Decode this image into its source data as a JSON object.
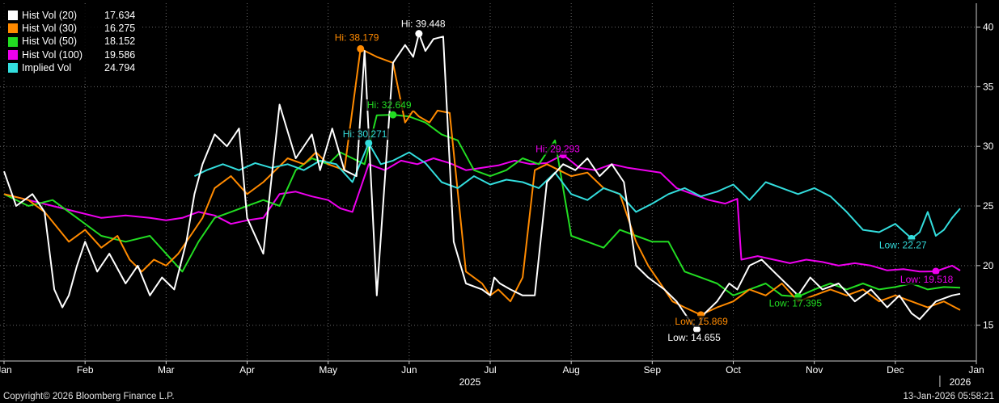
{
  "chart_data": {
    "type": "line",
    "title": "",
    "xlabel": "",
    "ylabel": "",
    "ylim": [
      12,
      42
    ],
    "y_ticks": [
      15,
      20,
      25,
      30,
      35,
      40
    ],
    "x_tick_labels": [
      "Jan",
      "Feb",
      "Mar",
      "Apr",
      "May",
      "Jun",
      "Jul",
      "Aug",
      "Sep",
      "Oct",
      "Nov",
      "Dec",
      "Jan"
    ],
    "year_labels": [
      "2025",
      "2026"
    ],
    "grid": true,
    "legend_position": "top-left",
    "series": [
      {
        "name": "Hist Vol (20)",
        "last": "17.634",
        "color": "#ffffff",
        "x": [
          0,
          0.15,
          0.35,
          0.5,
          0.62,
          0.72,
          0.8,
          0.9,
          1.0,
          1.15,
          1.3,
          1.5,
          1.65,
          1.8,
          1.95,
          2.1,
          2.25,
          2.35,
          2.45,
          2.6,
          2.75,
          2.9,
          3.0,
          3.2,
          3.4,
          3.6,
          3.8,
          3.9,
          4.05,
          4.2,
          4.35,
          4.45,
          4.6,
          4.8,
          4.95,
          5.05,
          5.12,
          5.2,
          5.3,
          5.42,
          5.55,
          5.7,
          5.9,
          6.0,
          6.05,
          6.12,
          6.25,
          6.4,
          6.55,
          6.7,
          6.9,
          7.05,
          7.2,
          7.35,
          7.5,
          7.65,
          7.8,
          7.95,
          8.05,
          8.15,
          8.3,
          8.45,
          8.55,
          8.65,
          8.8,
          8.95,
          9.05,
          9.2,
          9.35,
          9.5,
          9.65,
          9.8,
          9.95,
          10.1,
          10.3,
          10.5,
          10.7,
          10.9,
          11.05,
          11.2,
          11.3,
          11.5,
          11.7,
          11.8
        ],
        "y": [
          27.9,
          25.0,
          26.0,
          24.5,
          18.0,
          16.5,
          17.5,
          20.0,
          22.0,
          19.5,
          21.0,
          18.5,
          20.0,
          17.5,
          19.0,
          18.0,
          22.0,
          26.0,
          28.5,
          31.0,
          30.0,
          31.5,
          24.0,
          21.0,
          33.5,
          29.0,
          31.0,
          28.0,
          31.5,
          28.0,
          27.5,
          38.0,
          17.5,
          37.0,
          38.5,
          37.5,
          39.448,
          38.0,
          39.0,
          39.2,
          22.0,
          18.5,
          18.0,
          17.5,
          19.0,
          18.5,
          18.0,
          17.5,
          17.5,
          27.0,
          28.5,
          28.0,
          29.0,
          27.5,
          28.5,
          27.0,
          20.0,
          19.0,
          18.5,
          18.0,
          17.0,
          15.5,
          14.655,
          16.0,
          17.0,
          18.5,
          18.0,
          20.0,
          20.5,
          19.5,
          18.5,
          17.5,
          19.0,
          18.0,
          18.5,
          17.0,
          18.0,
          16.5,
          17.5,
          16.0,
          15.5,
          17.0,
          17.5,
          17.634
        ],
        "annotations": [
          {
            "label": "Hi: 39.448",
            "x": 5.12,
            "y": 39.448
          },
          {
            "label": "Low: 14.655",
            "x": 8.55,
            "y": 14.655
          }
        ]
      },
      {
        "name": "Hist Vol (30)",
        "last": "16.275",
        "color": "#ff8a00",
        "x": [
          0,
          0.3,
          0.5,
          0.8,
          1.0,
          1.2,
          1.4,
          1.55,
          1.7,
          1.85,
          2.0,
          2.15,
          2.3,
          2.45,
          2.6,
          2.8,
          3.0,
          3.2,
          3.35,
          3.5,
          3.7,
          3.85,
          4.0,
          4.2,
          4.4,
          4.6,
          4.8,
          4.95,
          5.05,
          5.12,
          5.25,
          5.35,
          5.5,
          5.7,
          5.9,
          6.0,
          6.1,
          6.25,
          6.4,
          6.55,
          6.7,
          6.85,
          7.0,
          7.2,
          7.4,
          7.6,
          7.8,
          7.95,
          8.1,
          8.25,
          8.4,
          8.6,
          8.8,
          9.0,
          9.2,
          9.4,
          9.6,
          9.8,
          10.0,
          10.2,
          10.4,
          10.6,
          10.8,
          11.0,
          11.2,
          11.4,
          11.6,
          11.8
        ],
        "y": [
          26.0,
          25.5,
          24.5,
          22.0,
          23.0,
          21.5,
          22.5,
          20.5,
          19.5,
          20.5,
          20.0,
          21.0,
          22.5,
          24.0,
          26.5,
          27.5,
          26.0,
          27.0,
          28.0,
          29.0,
          28.5,
          29.5,
          28.5,
          28.0,
          38.179,
          37.5,
          37.0,
          32.0,
          33.0,
          32.5,
          32.0,
          33.0,
          32.8,
          19.5,
          18.5,
          17.5,
          18.0,
          17.0,
          19.0,
          28.0,
          28.5,
          28.0,
          27.5,
          27.8,
          26.5,
          26.0,
          22.0,
          20.0,
          18.5,
          17.0,
          16.5,
          15.869,
          16.5,
          17.0,
          18.0,
          17.5,
          18.5,
          17.0,
          17.5,
          18.0,
          17.5,
          18.0,
          17.0,
          17.5,
          17.0,
          16.5,
          17.0,
          16.275
        ],
        "annotations": [
          {
            "label": "Hi: 38.179",
            "x": 4.4,
            "y": 38.179
          },
          {
            "label": "Low: 15.869",
            "x": 8.6,
            "y": 15.869
          }
        ]
      },
      {
        "name": "Hist Vol (50)",
        "last": "18.152",
        "color": "#22dd22",
        "x": [
          0,
          0.3,
          0.6,
          0.9,
          1.2,
          1.5,
          1.8,
          2.0,
          2.2,
          2.4,
          2.6,
          2.8,
          3.0,
          3.2,
          3.4,
          3.6,
          3.8,
          4.0,
          4.15,
          4.3,
          4.45,
          4.6,
          4.8,
          5.0,
          5.2,
          5.4,
          5.6,
          5.8,
          6.0,
          6.2,
          6.4,
          6.6,
          6.8,
          7.0,
          7.2,
          7.4,
          7.6,
          7.8,
          8.0,
          8.2,
          8.4,
          8.6,
          8.8,
          9.0,
          9.2,
          9.4,
          9.6,
          9.8,
          10.0,
          10.2,
          10.4,
          10.6,
          10.8,
          11.0,
          11.2,
          11.4,
          11.6,
          11.8
        ],
        "y": [
          26.0,
          25.0,
          25.5,
          24.0,
          22.5,
          22.0,
          22.5,
          21.0,
          19.5,
          22.0,
          24.0,
          24.5,
          25.0,
          25.5,
          25.0,
          28.0,
          29.0,
          28.5,
          29.5,
          29.0,
          28.5,
          32.6,
          32.649,
          32.5,
          32.0,
          31.0,
          30.5,
          28.0,
          27.5,
          28.0,
          29.0,
          28.5,
          30.5,
          22.5,
          22.0,
          21.5,
          23.0,
          22.5,
          22.0,
          22.0,
          19.5,
          19.0,
          18.5,
          17.5,
          18.0,
          18.5,
          17.5,
          17.395,
          18.0,
          18.5,
          18.0,
          18.5,
          18.0,
          18.2,
          18.5,
          18.0,
          18.2,
          18.152
        ],
        "annotations": [
          {
            "label": "Hi: 32.649",
            "x": 4.8,
            "y": 32.649
          },
          {
            "label": "Low: 17.395",
            "x": 9.8,
            "y": 17.395
          }
        ]
      },
      {
        "name": "Hist Vol (100)",
        "last": "19.586",
        "color": "#ee00ee",
        "x": [
          0,
          0.3,
          0.6,
          0.9,
          1.2,
          1.5,
          1.8,
          2.0,
          2.2,
          2.4,
          2.6,
          2.8,
          3.0,
          3.2,
          3.4,
          3.6,
          3.8,
          4.0,
          4.15,
          4.3,
          4.5,
          4.7,
          4.9,
          5.1,
          5.3,
          5.5,
          5.7,
          5.9,
          6.1,
          6.3,
          6.5,
          6.7,
          6.9,
          7.1,
          7.3,
          7.5,
          7.7,
          7.9,
          8.1,
          8.3,
          8.5,
          8.7,
          8.9,
          9.05,
          9.1,
          9.3,
          9.5,
          9.7,
          9.9,
          10.1,
          10.3,
          10.5,
          10.7,
          10.9,
          11.1,
          11.3,
          11.5,
          11.7,
          11.8
        ],
        "y": [
          26.0,
          25.5,
          25.0,
          24.5,
          24.0,
          24.2,
          24.0,
          23.8,
          24.0,
          24.5,
          24.2,
          23.5,
          23.8,
          24.0,
          26.0,
          26.2,
          25.8,
          25.5,
          24.8,
          24.5,
          28.5,
          28.0,
          28.8,
          28.5,
          29.0,
          28.6,
          28.0,
          28.2,
          28.4,
          28.8,
          28.5,
          28.6,
          29.293,
          28.2,
          28.0,
          28.5,
          28.2,
          28.0,
          27.8,
          26.5,
          26.0,
          25.5,
          25.2,
          25.6,
          20.5,
          20.8,
          20.5,
          20.2,
          20.5,
          20.3,
          20.0,
          20.2,
          20.0,
          19.6,
          19.7,
          19.5,
          19.518,
          20.0,
          19.586
        ],
        "annotations": [
          {
            "label": "Hi: 29.293",
            "x": 6.9,
            "y": 29.293
          },
          {
            "label": "Low: 19.518",
            "x": 11.5,
            "y": 19.518
          }
        ]
      },
      {
        "name": "Implied Vol",
        "last": "24.794",
        "color": "#33dddd",
        "x": [
          2.35,
          2.5,
          2.7,
          2.9,
          3.1,
          3.3,
          3.5,
          3.7,
          3.9,
          4.1,
          4.3,
          4.5,
          4.65,
          4.8,
          5.0,
          5.2,
          5.4,
          5.6,
          5.8,
          6.0,
          6.2,
          6.4,
          6.6,
          6.8,
          7.0,
          7.2,
          7.4,
          7.6,
          7.8,
          8.0,
          8.2,
          8.4,
          8.6,
          8.8,
          9.0,
          9.2,
          9.4,
          9.6,
          9.8,
          10.0,
          10.2,
          10.4,
          10.6,
          10.8,
          11.0,
          11.2,
          11.3,
          11.4,
          11.5,
          11.6,
          11.7,
          11.8
        ],
        "y": [
          27.5,
          28.0,
          28.5,
          28.0,
          28.6,
          28.2,
          28.5,
          28.0,
          28.8,
          28.5,
          27.0,
          30.271,
          28.5,
          28.8,
          29.5,
          28.6,
          27.0,
          26.5,
          27.5,
          26.8,
          27.2,
          27.0,
          26.5,
          27.8,
          26.0,
          25.5,
          26.5,
          26.0,
          24.5,
          25.2,
          26.0,
          26.5,
          25.8,
          26.2,
          26.8,
          25.5,
          27.0,
          26.5,
          26.0,
          26.5,
          25.8,
          24.5,
          23.0,
          22.8,
          23.5,
          22.27,
          22.8,
          24.5,
          22.5,
          23.0,
          24.0,
          24.794
        ],
        "annotations": [
          {
            "label": "Hi: 30.271",
            "x": 4.5,
            "y": 30.271
          },
          {
            "label": "Low: 22.27",
            "x": 11.2,
            "y": 22.27
          }
        ]
      }
    ]
  },
  "footer": {
    "copyright": "Copyright© 2026 Bloomberg Finance L.P.",
    "timestamp": "13-Jan-2026 05:58:21"
  }
}
